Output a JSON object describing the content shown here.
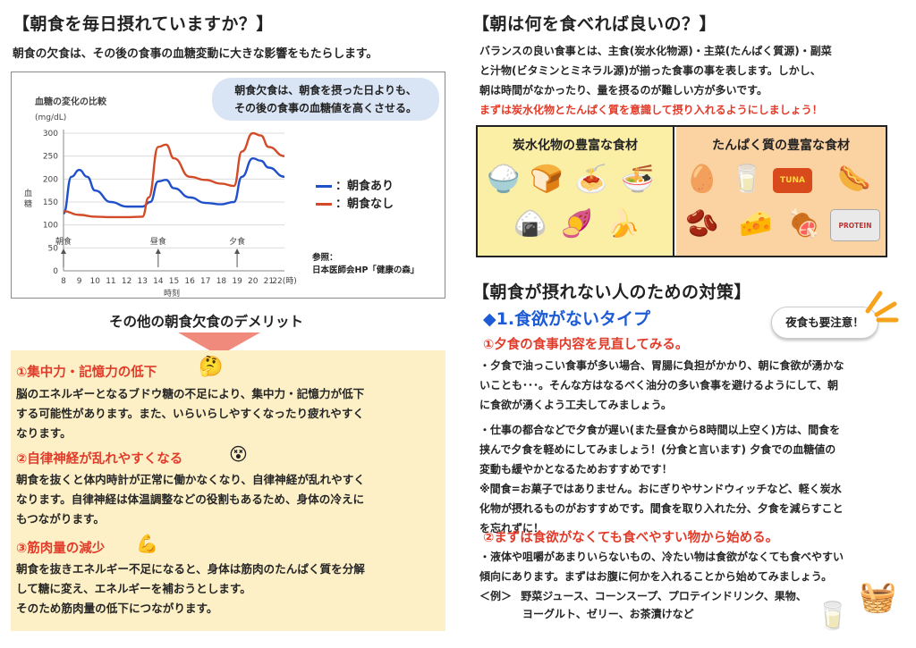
{
  "left": {
    "title": "【朝食を毎日摂れていますか？】",
    "intro": "朝食の欠食は、その後の食事の血糖変動に大きな影響をもたらします。",
    "bubble_line1": "朝食欠食は、朝食を摂った日よりも、",
    "bubble_line2": "その後の食事の血糖値を高くさせる。",
    "chart_title": "血糖の変化の比較",
    "chart_unit": "(mg/dL)",
    "ylabel": "血糖",
    "xlabel": "時刻",
    "meal_breakfast": "朝食",
    "meal_lunch": "昼食",
    "meal_dinner": "夕食",
    "legend_with": "：朝食あり",
    "legend_without": "：朝食なし",
    "ref_label": "参照：",
    "ref_source": "日本医師会HP「健康の森」",
    "demerit_title": "その他の朝食欠食のデメリット",
    "d1_title": "①集中力・記憶力の低下",
    "d1_body": [
      "脳のエネルギーとなるブドウ糖の不足により、集中力・記憶力が低下",
      "する可能性があります。また、いらいらしやすくなったり疲れやすく",
      "なります。"
    ],
    "d2_title": "②自律神経が乱れやすくなる",
    "d2_body": [
      "朝食を抜くと体内時計が正常に働かなくなり、自律神経が乱れやすく",
      "なります。自律神経は体温調整などの役割もあるため、身体の冷えに",
      "もつながります。"
    ],
    "d3_title": "③筋肉量の減少",
    "d3_body": [
      "朝食を抜きエネルギー不足になると、身体は筋肉のたんぱく質を分解",
      "して糖に変え、エネルギーを補おうとします。",
      "そのため筋肉量の低下につながります。"
    ]
  },
  "right": {
    "title": "【朝は何を食べれば良いの？】",
    "body": [
      "バランスの良い食事とは、主食(炭水化物源)・主菜(たんぱく質源)・副菜",
      "と汁物(ビタミンとミネラル源)が揃った食事の事を表します。しかし、",
      "朝は時間がなかったり、量を摂るのが難しい方が多いです。"
    ],
    "emphasis": "まずは炭水化物とたんぱく質を意識して摂り入れるようにしましょう！",
    "carb_title": "炭水化物の豊富な食材",
    "protein_title": "たんぱく質の豊富な食材",
    "carb_foods": [
      "🍚",
      "🍞",
      "🍝",
      "🍜",
      "🍙",
      "🍠",
      "🍌"
    ],
    "protein_foods": [
      "🥚",
      "🥛",
      "🐟",
      "🌭",
      "🫘",
      "🧀",
      "🍖",
      "🥤"
    ],
    "tuna_label": "TUNA",
    "protein_label": "PROTEIN",
    "measures_title": "【朝食が摂れない人のための対策】",
    "type1": "◆1.食欲がないタイプ",
    "note_bubble": "夜食も要注意！",
    "m1_title": "①夕食の食事内容を見直してみる。",
    "m1_body": [
      "・夕食で油っこい食事が多い場合、胃腸に負担がかかり、朝に食欲が湧かな",
      "いことも･･･。そんな方はなるべく油分の多い食事を避けるようにして、朝",
      "に食欲が湧くよう工夫してみましょう。"
    ],
    "m1_body2": [
      "・仕事の都合などで夕食が遅い(また昼食から8時間以上空く)方は、間食を",
      "挟んで夕食を軽めにしてみましょう！(分食と言います) 夕食での血糖値の",
      "変動も緩やかとなるためおすすめです！",
      "※間食=お菓子ではありません。おにぎりやサンドウィッチなど、軽く炭水",
      "化物が摂れるものがおすすめです。間食を取り入れた分、夕食を減らすこと",
      "を忘れずに！"
    ],
    "m2_title": "②まずは食欲がなくても食べやすい物から始める。",
    "m2_body": [
      "・液体や咀嚼があまりいらないもの、冷たい物は食欲がなくても食べやすい",
      "傾向にあります。まずはお腹に何かを入れることから始めてみましょう。"
    ],
    "example_label": "＜例＞",
    "example_line1": "野菜ジュース、コーンスープ、プロテインドリンク、果物、",
    "example_line2": "ヨーグルト、ゼリー、お茶漬けなど"
  },
  "chart_data": {
    "type": "line",
    "x": [
      8,
      9,
      10,
      11,
      12,
      13,
      14,
      15,
      16,
      17,
      18,
      19,
      20,
      21,
      22
    ],
    "x_ticks": [
      "8",
      "9",
      "10",
      "11",
      "12",
      "13",
      "14",
      "15",
      "16",
      "17",
      "18",
      "19",
      "20",
      "21",
      "22(時)"
    ],
    "y_ticks": [
      0,
      50,
      100,
      150,
      200,
      250,
      300
    ],
    "ylim": [
      0,
      300
    ],
    "xlim": [
      8,
      22
    ],
    "series": [
      {
        "name": "朝食あり",
        "color": "#1f4fc9",
        "points": [
          [
            8,
            125
          ],
          [
            8.5,
            205
          ],
          [
            9,
            220
          ],
          [
            9.5,
            205
          ],
          [
            10,
            175
          ],
          [
            11,
            150
          ],
          [
            12,
            140
          ],
          [
            13,
            140
          ],
          [
            13.5,
            150
          ],
          [
            14,
            195
          ],
          [
            14.5,
            198
          ],
          [
            15,
            180
          ],
          [
            16,
            160
          ],
          [
            17,
            148
          ],
          [
            18,
            145
          ],
          [
            18.8,
            150
          ],
          [
            19.3,
            205
          ],
          [
            20,
            245
          ],
          [
            20.5,
            240
          ],
          [
            21,
            225
          ],
          [
            22,
            205
          ]
        ]
      },
      {
        "name": "朝食なし",
        "color": "#d24a26",
        "points": [
          [
            8,
            130
          ],
          [
            9,
            122
          ],
          [
            10,
            118
          ],
          [
            11,
            117
          ],
          [
            12,
            117
          ],
          [
            13,
            118
          ],
          [
            13.4,
            160
          ],
          [
            14,
            270
          ],
          [
            14.5,
            275
          ],
          [
            15,
            245
          ],
          [
            16,
            205
          ],
          [
            17,
            198
          ],
          [
            18,
            190
          ],
          [
            18.8,
            185
          ],
          [
            19.3,
            260
          ],
          [
            20,
            300
          ],
          [
            20.5,
            295
          ],
          [
            21,
            270
          ],
          [
            22,
            250
          ]
        ]
      }
    ],
    "meal_times": [
      8,
      14,
      19
    ],
    "grid": "horizontal"
  }
}
